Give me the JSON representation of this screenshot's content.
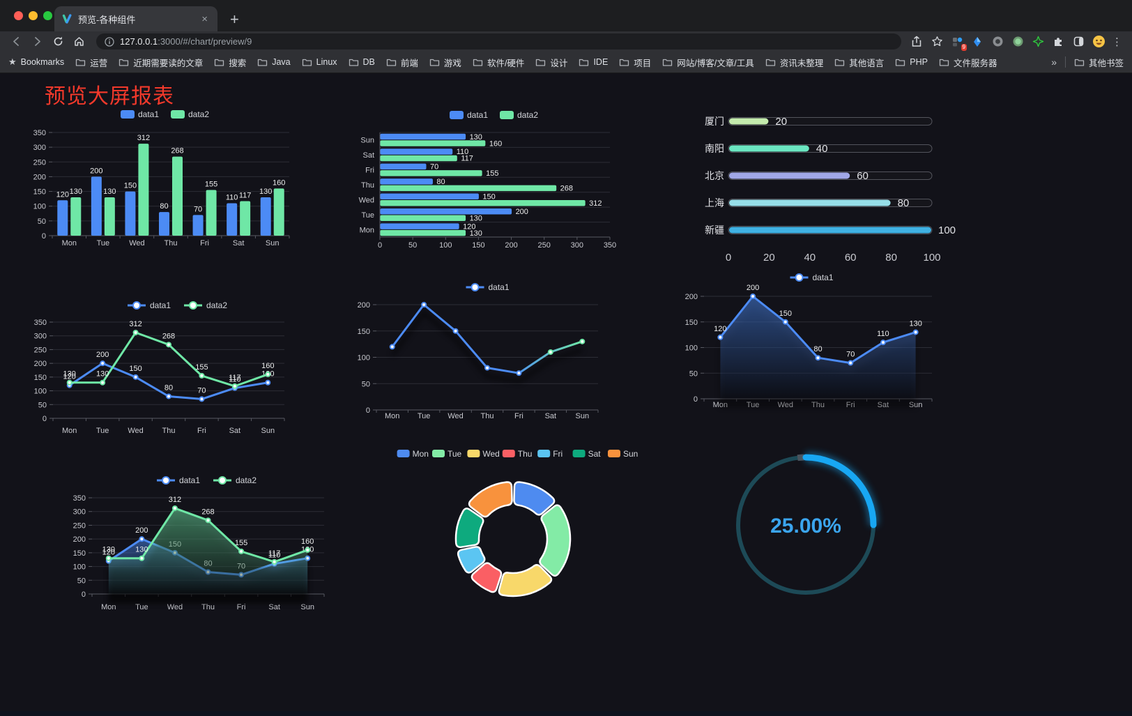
{
  "browser": {
    "tab": {
      "title": "预览-各种组件",
      "close_glyph": "×"
    },
    "new_tab_glyph": "+",
    "url": {
      "host": "127.0.0.1",
      "rest": ":3000/#/chart/preview/9"
    },
    "bookmarks_label": "Bookmarks",
    "bookmarks": [
      "运营",
      "近期需要读的文章",
      "搜索",
      "Java",
      "Linux",
      "DB",
      "前端",
      "游戏",
      "软件/硬件",
      "设计",
      "IDE",
      "项目",
      "网站/博客/文章/工具",
      "资讯未整理",
      "其他语言",
      "PHP",
      "文件服务器"
    ],
    "overflow_glyph": "»",
    "other_bookmarks": "其他书签",
    "extension_badge": "9",
    "menu_glyph": "⋮",
    "bookmarks_star_glyph": "★"
  },
  "page": {
    "title": "预览大屏报表",
    "title_color": "#f2392b"
  },
  "theme": {
    "data1_color": "#4C8BF5",
    "data2_color": "#6FE7A6",
    "axis_text": "#c9cad0",
    "grid_line": "#2c2d36",
    "axis_line": "#585962",
    "label_text": "#eceded",
    "legend_text": "#d4d6db"
  },
  "chart_data": [
    {
      "id": "c1",
      "type": "bar",
      "orientation": "vertical",
      "categories": [
        "Mon",
        "Tue",
        "Wed",
        "Thu",
        "Fri",
        "Sat",
        "Sun"
      ],
      "series": [
        {
          "name": "data1",
          "color": "#4C8BF5",
          "values": [
            120,
            200,
            150,
            80,
            70,
            110,
            130
          ]
        },
        {
          "name": "data2",
          "color": "#6FE7A6",
          "values": [
            130,
            130,
            312,
            268,
            155,
            117,
            160
          ]
        }
      ],
      "ylim": [
        0,
        350
      ],
      "ystep": 50,
      "value_labels": true
    },
    {
      "id": "c2",
      "type": "bar",
      "orientation": "horizontal",
      "categories": [
        "Mon",
        "Tue",
        "Wed",
        "Thu",
        "Fri",
        "Sat",
        "Sun"
      ],
      "series": [
        {
          "name": "data1",
          "color": "#4C8BF5",
          "values": [
            120,
            200,
            150,
            80,
            70,
            110,
            130
          ]
        },
        {
          "name": "data2",
          "color": "#6FE7A6",
          "values": [
            130,
            130,
            312,
            268,
            155,
            117,
            160
          ]
        }
      ],
      "xlim": [
        0,
        350
      ],
      "xstep": 50,
      "value_labels": true
    },
    {
      "id": "c3",
      "type": "bar",
      "subtype": "progress",
      "max": 100,
      "xticks": [
        0,
        20,
        40,
        60,
        80,
        100
      ],
      "items": [
        {
          "label": "厦门",
          "value": 20,
          "color": "#c4ebad"
        },
        {
          "label": "南阳",
          "value": 40,
          "color": "#6be6c1"
        },
        {
          "label": "北京",
          "value": 60,
          "color": "#a0a7e6"
        },
        {
          "label": "上海",
          "value": 80,
          "color": "#96dee8"
        },
        {
          "label": "新疆",
          "value": 100,
          "color": "#3fb1e3"
        }
      ]
    },
    {
      "id": "c4",
      "type": "line",
      "categories": [
        "Mon",
        "Tue",
        "Wed",
        "Thu",
        "Fri",
        "Sat",
        "Sun"
      ],
      "series": [
        {
          "name": "data1",
          "color": "#4C8BF5",
          "values": [
            120,
            200,
            150,
            80,
            70,
            110,
            130
          ]
        },
        {
          "name": "data2",
          "color": "#6FE7A6",
          "values": [
            130,
            130,
            312,
            268,
            155,
            117,
            160
          ]
        }
      ],
      "ylim": [
        0,
        350
      ],
      "ystep": 50,
      "value_labels": true
    },
    {
      "id": "c5",
      "type": "line",
      "gradient_stroke": true,
      "categories": [
        "Mon",
        "Tue",
        "Wed",
        "Thu",
        "Fri",
        "Sat",
        "Sun"
      ],
      "series": [
        {
          "name": "data1",
          "color": "#4C8BF5",
          "color2": "#6FE7A6",
          "values": [
            120,
            200,
            150,
            80,
            70,
            110,
            130
          ]
        }
      ],
      "ylim": [
        0,
        200
      ],
      "ystep": 50,
      "value_labels": false
    },
    {
      "id": "c6",
      "type": "area",
      "categories": [
        "Mon",
        "Tue",
        "Wed",
        "Thu",
        "Fri",
        "Sat",
        "Sun"
      ],
      "series": [
        {
          "name": "data1",
          "color": "#4C8BF5",
          "values": [
            120,
            200,
            150,
            80,
            70,
            110,
            130
          ]
        }
      ],
      "ylim": [
        0,
        200
      ],
      "ystep": 50,
      "value_labels": true
    },
    {
      "id": "c7",
      "type": "area",
      "categories": [
        "Mon",
        "Tue",
        "Wed",
        "Thu",
        "Fri",
        "Sat",
        "Sun"
      ],
      "series": [
        {
          "name": "data1",
          "color": "#4C8BF5",
          "values": [
            120,
            200,
            150,
            80,
            70,
            110,
            130
          ]
        },
        {
          "name": "data2",
          "color": "#6FE7A6",
          "values": [
            130,
            130,
            312,
            268,
            155,
            117,
            160
          ]
        }
      ],
      "ylim": [
        0,
        350
      ],
      "ystep": 50,
      "value_labels": true
    },
    {
      "id": "c8",
      "type": "pie",
      "subtype": "donut",
      "items": [
        {
          "label": "Mon",
          "value": 120,
          "color": "#4E8BF0"
        },
        {
          "label": "Tue",
          "value": 200,
          "color": "#83EBA6"
        },
        {
          "label": "Wed",
          "value": 150,
          "color": "#F8D86A"
        },
        {
          "label": "Thu",
          "value": 80,
          "color": "#FA5F64"
        },
        {
          "label": "Fri",
          "value": 70,
          "color": "#5BC5F2"
        },
        {
          "label": "Sat",
          "value": 110,
          "color": "#0EAA7E"
        },
        {
          "label": "Sun",
          "value": 130,
          "color": "#F8923D"
        }
      ]
    },
    {
      "id": "c9",
      "type": "gauge",
      "value": 25,
      "max": 100,
      "display": "25.00%",
      "track_color": "#1d4a57",
      "progress_color": "#18a7f3",
      "text_color": "#3BA5EE"
    }
  ]
}
